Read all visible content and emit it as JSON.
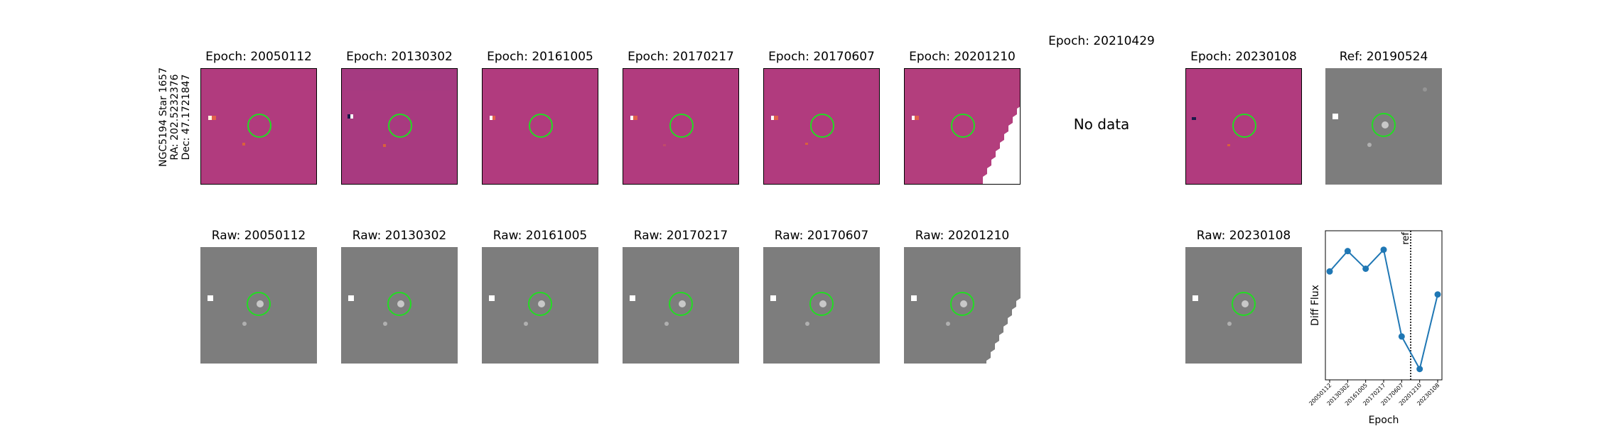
{
  "star_label": {
    "line1": "NGC5194 Star 1657",
    "line2": "RA: 202.5232376",
    "line3": "Dec: 47.1721847"
  },
  "diff_panels": [
    {
      "title": "Epoch: 20050112",
      "has_data": true
    },
    {
      "title": "Epoch: 20130302",
      "has_data": true
    },
    {
      "title": "Epoch: 20161005",
      "has_data": true
    },
    {
      "title": "Epoch: 20170217",
      "has_data": true
    },
    {
      "title": "Epoch: 20170607",
      "has_data": true
    },
    {
      "title": "Epoch: 20201210",
      "has_data": true,
      "partial_coverage": true
    },
    {
      "title": "Epoch: 20210429",
      "has_data": false,
      "no_data_text": "No data"
    },
    {
      "title": "Epoch: 20230108",
      "has_data": true
    }
  ],
  "ref_panel": {
    "title": "Ref: 20190524"
  },
  "raw_panels": [
    {
      "title": "Raw: 20050112"
    },
    {
      "title": "Raw: 20130302"
    },
    {
      "title": "Raw: 20161005"
    },
    {
      "title": "Raw: 20170217"
    },
    {
      "title": "Raw: 20170607"
    },
    {
      "title": "Raw: 20201210",
      "partial_coverage": true
    },
    {
      "title": "Raw: 20230108"
    }
  ],
  "colors": {
    "diff_background": "#b13b7e",
    "raw_background": "#7d7d7d",
    "circle": "#22dd22",
    "line": "#1f77b4"
  },
  "chart_data": {
    "type": "line",
    "xlabel": "Epoch",
    "ylabel": "Diff Flux",
    "categories": [
      "20050112",
      "20130302",
      "20161005",
      "20170217",
      "20170607",
      "20201210",
      "20230108"
    ],
    "values": [
      0.7,
      0.85,
      0.72,
      0.86,
      0.22,
      -0.02,
      0.53
    ],
    "ylim": [
      -0.1,
      1.0
    ],
    "reference_line": {
      "position": 4.5,
      "label": "ref",
      "style": "dotted"
    },
    "grid": false,
    "legend": "none"
  }
}
